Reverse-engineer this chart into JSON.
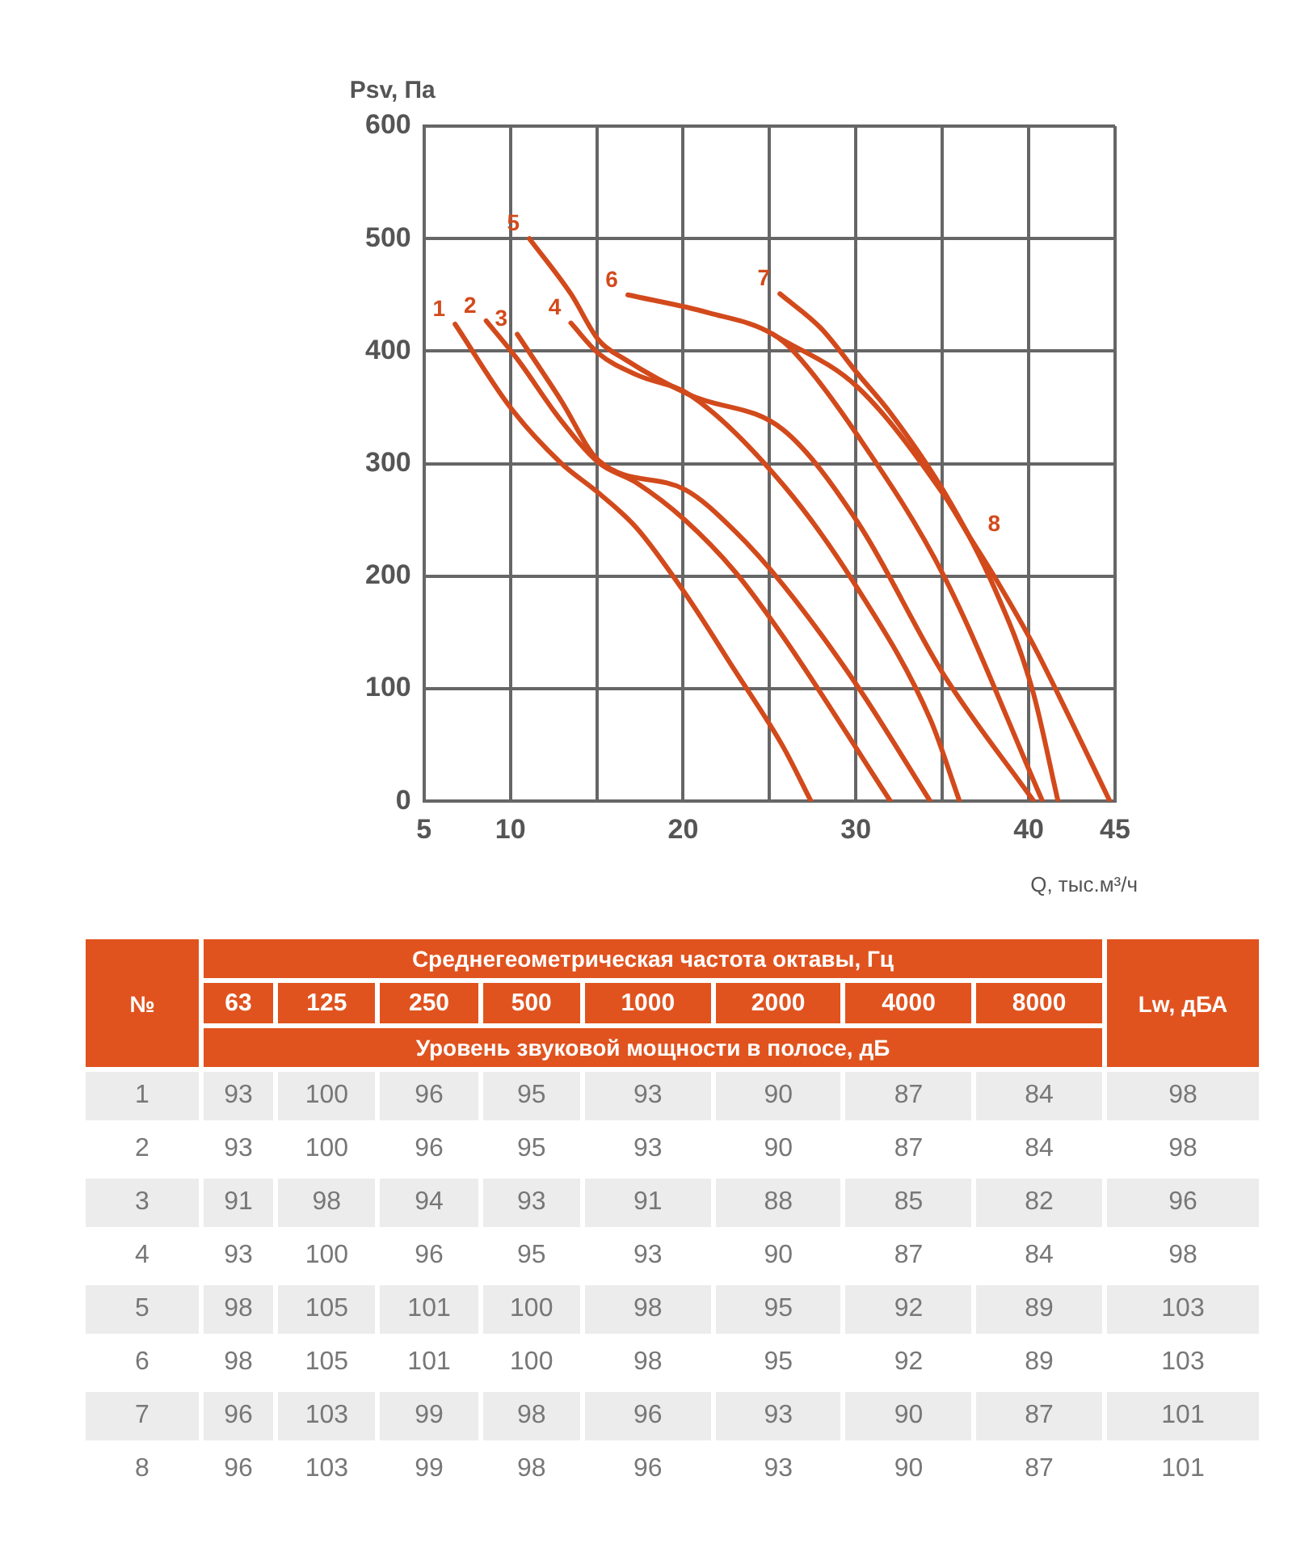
{
  "chart_data": [
    {
      "type": "line",
      "xlabel": "Q, тыс.м³/ч",
      "ylabel": "Psv, Па",
      "xlim": [
        5,
        45
      ],
      "ylim": [
        0,
        600
      ],
      "xticks": [
        5,
        10,
        {
          "value": 15,
          "label": null
        },
        20,
        {
          "value": 25,
          "label": null
        },
        30,
        {
          "value": 35,
          "label": null
        },
        40,
        45
      ],
      "yticks": [
        0,
        100,
        200,
        300,
        400,
        500,
        600
      ],
      "grid": true,
      "legend": false,
      "marker": "none",
      "line_style": "solid",
      "series": [
        {
          "color": "#d24a1c",
          "x": [
            6.8,
            10,
            12.9,
            15.1,
            17.3,
            20.1,
            23,
            25.8,
            27.4
          ],
          "values": [
            424,
            350,
            301,
            274,
            243,
            185,
            116,
            48,
            0
          ]
        },
        {
          "color": "#d24a1c",
          "x": [
            8.6,
            10.4,
            12.9,
            15.1,
            17.3,
            20.1,
            23,
            25.8,
            32
          ],
          "values": [
            427,
            393,
            339,
            301,
            283,
            250,
            204,
            146,
            0
          ]
        },
        {
          "color": "#d24a1c",
          "x": [
            10.4,
            12.9,
            15.1,
            20.1,
            23,
            25.8,
            30.1,
            34.3
          ],
          "values": [
            415,
            357,
            303,
            277,
            240,
            192,
            102,
            0
          ]
        },
        {
          "color": "#d24a1c",
          "x": [
            13.5,
            15.1,
            17.3,
            20.4,
            25.8,
            30.1,
            34.3,
            36
          ],
          "values": [
            425,
            398,
            379,
            361,
            281,
            189,
            73,
            0
          ]
        },
        {
          "color": "#d24a1c",
          "x": [
            11.1,
            13.5,
            15.1,
            16.6,
            20.4,
            25.8,
            30.1,
            35.1,
            40.3
          ],
          "values": [
            500,
            451,
            410,
            393,
            361,
            330,
            248,
            112,
            0
          ]
        },
        {
          "color": "#d24a1c",
          "x": [
            16.8,
            21.5,
            25.2,
            26.5,
            30.1,
            35.1,
            40.8
          ],
          "values": [
            450,
            434,
            415,
            398,
            325,
            200,
            0
          ]
        },
        {
          "color": "#d24a1c",
          "x": [
            25.6,
            28,
            30.1,
            32,
            35.1,
            38,
            40.2,
            41.7
          ],
          "values": [
            451,
            420,
            380,
            345,
            275,
            190,
            100,
            0
          ]
        },
        {
          "color": "#d24a1c",
          "x": [
            25.2,
            30.1,
            35.1,
            36.5,
            38,
            40.2,
            42.5,
            44.7
          ],
          "values": [
            415,
            368,
            272,
            237,
            200,
            141,
            70,
            0
          ]
        }
      ],
      "annotations": [
        {
          "text": "1",
          "x": 6.8,
          "y": 424
        },
        {
          "text": "2",
          "x": 8.6,
          "y": 427
        },
        {
          "text": "3",
          "x": 10.4,
          "y": 415
        },
        {
          "text": "4",
          "x": 13.5,
          "y": 425
        },
        {
          "text": "5",
          "x": 11.1,
          "y": 500
        },
        {
          "text": "6",
          "x": 16.8,
          "y": 450
        },
        {
          "text": "7",
          "x": 25.6,
          "y": 451
        },
        {
          "text": "8",
          "x": 36.5,
          "y": 237
        }
      ]
    },
    {
      "type": "heatmap",
      "title": "Среднегеометрическая частота октавы, Гц",
      "subtitle": "Уровень звуковой мощности в полосе, дБ",
      "ylabel": "№",
      "categories": [
        "63",
        "125",
        "250",
        "500",
        "1000",
        "2000",
        "4000",
        "8000",
        "Lw, дБА"
      ],
      "y_categories": [
        "1",
        "2",
        "3",
        "4",
        "5",
        "6",
        "7",
        "8"
      ],
      "data_labels": true,
      "cells": [
        [
          93,
          100,
          96,
          95,
          93,
          90,
          87,
          84,
          98
        ],
        [
          93,
          100,
          96,
          95,
          93,
          90,
          87,
          84,
          98
        ],
        [
          91,
          98,
          94,
          93,
          91,
          88,
          85,
          82,
          96
        ],
        [
          93,
          100,
          96,
          95,
          93,
          90,
          87,
          84,
          98
        ],
        [
          98,
          105,
          101,
          100,
          98,
          95,
          92,
          89,
          103
        ],
        [
          98,
          105,
          101,
          100,
          98,
          95,
          92,
          89,
          103
        ],
        [
          96,
          103,
          99,
          98,
          96,
          93,
          90,
          87,
          101
        ],
        [
          96,
          103,
          99,
          98,
          96,
          93,
          90,
          87,
          101
        ]
      ]
    }
  ]
}
